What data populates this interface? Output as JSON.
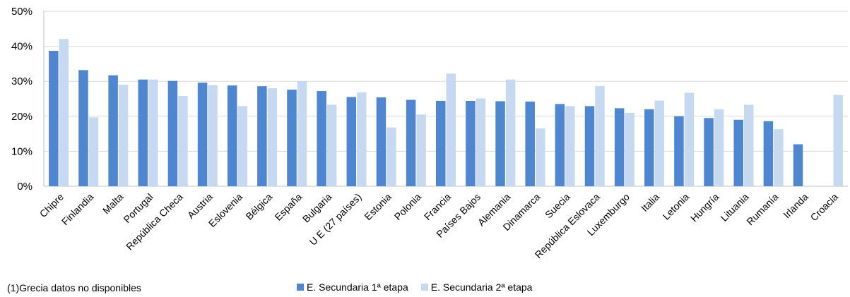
{
  "chart_data": {
    "type": "bar",
    "categories": [
      "Chipre",
      "Finlandia",
      "Malta",
      "Portugal",
      "República Checa",
      "Austria",
      "Eslovenia",
      "Bélgica",
      "España",
      "Bulgaria",
      "U E (27 países)",
      "Estonia",
      "Polonia",
      "Francia",
      "Países Bajos",
      "Alemania",
      "Dinamarca",
      "Suecia",
      "República Eslovaca",
      "Luxemburgo",
      "Italia",
      "Letonia",
      "Hungría",
      "Lituania",
      "Rumanía",
      "Irlanda",
      "Croacia"
    ],
    "series": [
      {
        "name": "E. Secundaria 1ª etapa",
        "color": "#4f86d0",
        "values": [
          38.7,
          33.2,
          31.7,
          30.5,
          30.1,
          29.6,
          28.8,
          28.6,
          27.6,
          27.2,
          25.5,
          25.4,
          24.7,
          24.4,
          24.4,
          24.3,
          24.2,
          23.5,
          22.9,
          22.3,
          22.0,
          20.0,
          19.5,
          19.0,
          18.6,
          12.0,
          null
        ]
      },
      {
        "name": "E. Secundaria 2ª etapa",
        "color": "#c6d9f1",
        "values": [
          42.1,
          19.7,
          29.0,
          30.5,
          25.8,
          28.9,
          22.9,
          28.0,
          30.0,
          23.3,
          26.8,
          16.8,
          20.5,
          32.2,
          25.1,
          30.5,
          16.5,
          22.9,
          28.6,
          21.0,
          24.5,
          26.7,
          22.0,
          23.3,
          16.3,
          null,
          26.1
        ]
      }
    ],
    "yticks": [
      "0%",
      "10%",
      "20%",
      "30%",
      "40%",
      "50%"
    ],
    "ylim": [
      0,
      50
    ],
    "grid": true,
    "legend_position": "bottom"
  },
  "footnote": "(1)Grecia datos no disponibles"
}
